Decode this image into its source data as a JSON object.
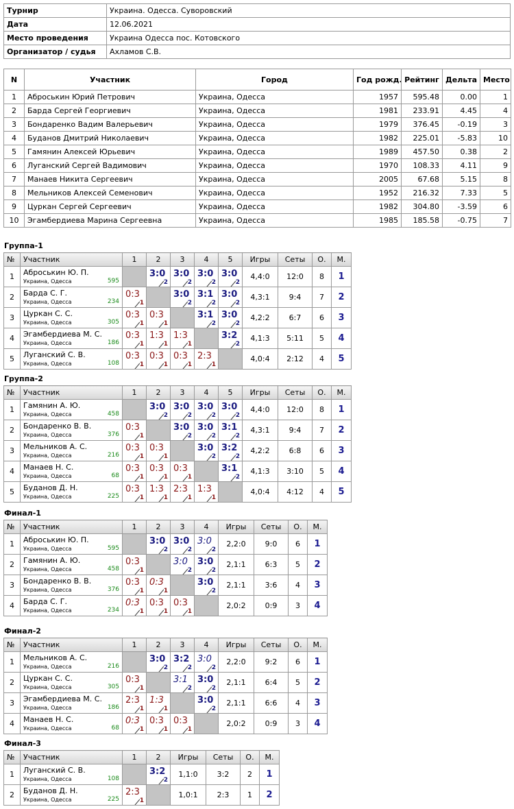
{
  "info": {
    "rows": [
      {
        "label": "Турнир",
        "value": "Украина. Одесса. Суворовский"
      },
      {
        "label": "Дата",
        "value": "12.06.2021"
      },
      {
        "label": "Место проведения",
        "value": "Украина Одесса пос. Котовского"
      },
      {
        "label": "Организатор / судья",
        "value": "Ахламов С.В."
      }
    ]
  },
  "participants": {
    "header": [
      "N",
      "Участник",
      "Город",
      "Год рожд.",
      "Рейтинг",
      "Дельта",
      "Место"
    ],
    "rows": [
      [
        "1",
        "Аброськин Юрий Петрович",
        "Украина, Одесса",
        "1957",
        "595.48",
        "0.00",
        "1"
      ],
      [
        "2",
        "Барда Сергей Георгиевич",
        "Украина, Одесса",
        "1981",
        "233.91",
        "4.45",
        "4"
      ],
      [
        "3",
        "Бондаренко Вадим Валерьевич",
        "Украина, Одесса",
        "1979",
        "376.45",
        "-0.19",
        "3"
      ],
      [
        "4",
        "Буданов Дмитрий Николаевич",
        "Украина, Одесса",
        "1982",
        "225.01",
        "-5.83",
        "10"
      ],
      [
        "5",
        "Гамянин Алексей Юрьевич",
        "Украина, Одесса",
        "1989",
        "457.50",
        "0.38",
        "2"
      ],
      [
        "6",
        "Луганский Сергей Вадимович",
        "Украина, Одесса",
        "1970",
        "108.33",
        "4.11",
        "9"
      ],
      [
        "7",
        "Манаев Никита Сергеевич",
        "Украина, Одесса",
        "2005",
        "67.68",
        "5.15",
        "8"
      ],
      [
        "8",
        "Мельников Алексей Семенович",
        "Украина, Одесса",
        "1952",
        "216.32",
        "7.33",
        "5"
      ],
      [
        "9",
        "Цуркан Сергей Сергеевич",
        "Украина, Одесса",
        "1982",
        "304.80",
        "-3.59",
        "6"
      ],
      [
        "10",
        "Эгамбердиева Марина Сергеевна",
        "Украина, Одесса",
        "1985",
        "185.58",
        "-0.75",
        "7"
      ]
    ]
  },
  "groups": [
    {
      "title": "Группа-1",
      "header": [
        "№",
        "Участник",
        "1",
        "2",
        "3",
        "4",
        "5",
        "Игры",
        "Сеты",
        "О.",
        "М."
      ],
      "rows": [
        {
          "num": "1",
          "name": "Аброськин Ю. П.",
          "city": "Украина, Одесса",
          "rating": "595",
          "cells": [
            null,
            {
              "score": "3:0",
              "pts": "2"
            },
            {
              "score": "3:0",
              "pts": "2"
            },
            {
              "score": "3:0",
              "pts": "2"
            },
            {
              "score": "3:0",
              "pts": "2"
            }
          ],
          "games": "4,4:0",
          "sets": "12:0",
          "points": "8",
          "place": "1"
        },
        {
          "num": "2",
          "name": "Барда С. Г.",
          "city": "Украина, Одесса",
          "rating": "234",
          "cells": [
            {
              "score": "0:3",
              "pts": "1"
            },
            null,
            {
              "score": "3:0",
              "pts": "2"
            },
            {
              "score": "3:1",
              "pts": "2"
            },
            {
              "score": "3:0",
              "pts": "2"
            }
          ],
          "games": "4,3:1",
          "sets": "9:4",
          "points": "7",
          "place": "2"
        },
        {
          "num": "3",
          "name": "Цуркан С. С.",
          "city": "Украина, Одесса",
          "rating": "305",
          "cells": [
            {
              "score": "0:3",
              "pts": "1"
            },
            {
              "score": "0:3",
              "pts": "1"
            },
            null,
            {
              "score": "3:1",
              "pts": "2"
            },
            {
              "score": "3:0",
              "pts": "2"
            }
          ],
          "games": "4,2:2",
          "sets": "6:7",
          "points": "6",
          "place": "3"
        },
        {
          "num": "4",
          "name": "Эгамбердиева М. С.",
          "city": "Украина, Одесса",
          "rating": "186",
          "cells": [
            {
              "score": "0:3",
              "pts": "1"
            },
            {
              "score": "1:3",
              "pts": "1"
            },
            {
              "score": "1:3",
              "pts": "1"
            },
            null,
            {
              "score": "3:2",
              "pts": "2"
            }
          ],
          "games": "4,1:3",
          "sets": "5:11",
          "points": "5",
          "place": "4"
        },
        {
          "num": "5",
          "name": "Луганский С. В.",
          "city": "Украина, Одесса",
          "rating": "108",
          "cells": [
            {
              "score": "0:3",
              "pts": "1"
            },
            {
              "score": "0:3",
              "pts": "1"
            },
            {
              "score": "0:3",
              "pts": "1"
            },
            {
              "score": "2:3",
              "pts": "1"
            },
            null
          ],
          "games": "4,0:4",
          "sets": "2:12",
          "points": "4",
          "place": "5"
        }
      ]
    },
    {
      "title": "Группа-2",
      "header": [
        "№",
        "Участник",
        "1",
        "2",
        "3",
        "4",
        "5",
        "Игры",
        "Сеты",
        "О.",
        "М."
      ],
      "rows": [
        {
          "num": "1",
          "name": "Гамянин А. Ю.",
          "city": "Украина, Одесса",
          "rating": "458",
          "cells": [
            null,
            {
              "score": "3:0",
              "pts": "2"
            },
            {
              "score": "3:0",
              "pts": "2"
            },
            {
              "score": "3:0",
              "pts": "2"
            },
            {
              "score": "3:0",
              "pts": "2"
            }
          ],
          "games": "4,4:0",
          "sets": "12:0",
          "points": "8",
          "place": "1"
        },
        {
          "num": "2",
          "name": "Бондаренко В. В.",
          "city": "Украина, Одесса",
          "rating": "376",
          "cells": [
            {
              "score": "0:3",
              "pts": "1"
            },
            null,
            {
              "score": "3:0",
              "pts": "2"
            },
            {
              "score": "3:0",
              "pts": "2"
            },
            {
              "score": "3:1",
              "pts": "2"
            }
          ],
          "games": "4,3:1",
          "sets": "9:4",
          "points": "7",
          "place": "2"
        },
        {
          "num": "3",
          "name": "Мельников А. С.",
          "city": "Украина, Одесса",
          "rating": "216",
          "cells": [
            {
              "score": "0:3",
              "pts": "1"
            },
            {
              "score": "0:3",
              "pts": "1"
            },
            null,
            {
              "score": "3:0",
              "pts": "2"
            },
            {
              "score": "3:2",
              "pts": "2"
            }
          ],
          "games": "4,2:2",
          "sets": "6:8",
          "points": "6",
          "place": "3"
        },
        {
          "num": "4",
          "name": "Манаев Н. С.",
          "city": "Украина, Одесса",
          "rating": "68",
          "cells": [
            {
              "score": "0:3",
              "pts": "1"
            },
            {
              "score": "0:3",
              "pts": "1"
            },
            {
              "score": "0:3",
              "pts": "1"
            },
            null,
            {
              "score": "3:1",
              "pts": "2"
            }
          ],
          "games": "4,1:3",
          "sets": "3:10",
          "points": "5",
          "place": "4"
        },
        {
          "num": "5",
          "name": "Буданов Д. Н.",
          "city": "Украина, Одесса",
          "rating": "225",
          "cells": [
            {
              "score": "0:3",
              "pts": "1"
            },
            {
              "score": "1:3",
              "pts": "1"
            },
            {
              "score": "2:3",
              "pts": "1"
            },
            {
              "score": "1:3",
              "pts": "1"
            },
            null
          ],
          "games": "4,0:4",
          "sets": "4:12",
          "points": "4",
          "place": "5"
        }
      ]
    },
    {
      "title": "Финал-1",
      "header": [
        "№",
        "Участник",
        "1",
        "2",
        "3",
        "4",
        "Игры",
        "Сеты",
        "О.",
        "М."
      ],
      "rows": [
        {
          "num": "1",
          "name": "Аброськин Ю. П.",
          "city": "Украина, Одесса",
          "rating": "595",
          "cells": [
            null,
            {
              "score": "3:0",
              "pts": "2"
            },
            {
              "score": "3:0",
              "pts": "2"
            },
            {
              "score": "3:0",
              "pts": "2",
              "italic": true
            }
          ],
          "games": "2,2:0",
          "sets": "9:0",
          "points": "6",
          "place": "1"
        },
        {
          "num": "2",
          "name": "Гамянин А. Ю.",
          "city": "Украина, Одесса",
          "rating": "458",
          "cells": [
            {
              "score": "0:3",
              "pts": "1"
            },
            null,
            {
              "score": "3:0",
              "pts": "2",
              "italic": true
            },
            {
              "score": "3:0",
              "pts": "2"
            }
          ],
          "games": "2,1:1",
          "sets": "6:3",
          "points": "5",
          "place": "2"
        },
        {
          "num": "3",
          "name": "Бондаренко В. В.",
          "city": "Украина, Одесса",
          "rating": "376",
          "cells": [
            {
              "score": "0:3",
              "pts": "1"
            },
            {
              "score": "0:3",
              "pts": "1",
              "italic": true
            },
            null,
            {
              "score": "3:0",
              "pts": "2"
            }
          ],
          "games": "2,1:1",
          "sets": "3:6",
          "points": "4",
          "place": "3"
        },
        {
          "num": "4",
          "name": "Барда С. Г.",
          "city": "Украина, Одесса",
          "rating": "234",
          "cells": [
            {
              "score": "0:3",
              "pts": "1",
              "italic": true
            },
            {
              "score": "0:3",
              "pts": "1"
            },
            {
              "score": "0:3",
              "pts": "1"
            },
            null
          ],
          "games": "2,0:2",
          "sets": "0:9",
          "points": "3",
          "place": "4"
        }
      ]
    },
    {
      "title": "Финал-2",
      "header": [
        "№",
        "Участник",
        "1",
        "2",
        "3",
        "4",
        "Игры",
        "Сеты",
        "О.",
        "М."
      ],
      "rows": [
        {
          "num": "1",
          "name": "Мельников А. С.",
          "city": "Украина, Одесса",
          "rating": "216",
          "cells": [
            null,
            {
              "score": "3:0",
              "pts": "2"
            },
            {
              "score": "3:2",
              "pts": "2"
            },
            {
              "score": "3:0",
              "pts": "2",
              "italic": true
            }
          ],
          "games": "2,2:0",
          "sets": "9:2",
          "points": "6",
          "place": "1"
        },
        {
          "num": "2",
          "name": "Цуркан С. С.",
          "city": "Украина, Одесса",
          "rating": "305",
          "cells": [
            {
              "score": "0:3",
              "pts": "1"
            },
            null,
            {
              "score": "3:1",
              "pts": "2",
              "italic": true
            },
            {
              "score": "3:0",
              "pts": "2"
            }
          ],
          "games": "2,1:1",
          "sets": "6:4",
          "points": "5",
          "place": "2"
        },
        {
          "num": "3",
          "name": "Эгамбердиева М. С.",
          "city": "Украина, Одесса",
          "rating": "186",
          "cells": [
            {
              "score": "2:3",
              "pts": "1"
            },
            {
              "score": "1:3",
              "pts": "1",
              "italic": true
            },
            null,
            {
              "score": "3:0",
              "pts": "2"
            }
          ],
          "games": "2,1:1",
          "sets": "6:6",
          "points": "4",
          "place": "3"
        },
        {
          "num": "4",
          "name": "Манаев Н. С.",
          "city": "Украина, Одесса",
          "rating": "68",
          "cells": [
            {
              "score": "0:3",
              "pts": "1",
              "italic": true
            },
            {
              "score": "0:3",
              "pts": "1"
            },
            {
              "score": "0:3",
              "pts": "1"
            },
            null
          ],
          "games": "2,0:2",
          "sets": "0:9",
          "points": "3",
          "place": "4"
        }
      ]
    },
    {
      "title": "Финал-3",
      "header": [
        "№",
        "Участник",
        "1",
        "2",
        "Игры",
        "Сеты",
        "О.",
        "М."
      ],
      "rows": [
        {
          "num": "1",
          "name": "Луганский С. В.",
          "city": "Украина, Одесса",
          "rating": "108",
          "cells": [
            null,
            {
              "score": "3:2",
              "pts": "2"
            }
          ],
          "games": "1,1:0",
          "sets": "3:2",
          "points": "2",
          "place": "1"
        },
        {
          "num": "2",
          "name": "Буданов Д. Н.",
          "city": "Украина, Одесса",
          "rating": "225",
          "cells": [
            {
              "score": "2:3",
              "pts": "1"
            },
            null
          ],
          "games": "1,0:1",
          "sets": "2:3",
          "points": "1",
          "place": "2"
        }
      ]
    }
  ]
}
